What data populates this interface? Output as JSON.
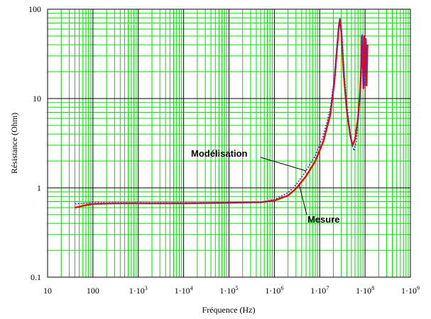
{
  "chart_data": {
    "type": "line",
    "title": "",
    "xlabel": "Fréquence (Hz)",
    "ylabel": "Résistance (Ohm)",
    "x_scale": "log",
    "y_scale": "log",
    "xlim": [
      10,
      1000000000
    ],
    "ylim": [
      0.1,
      100
    ],
    "grid": true,
    "grid_color": "#00dd00",
    "major_grid_color": "#000000",
    "x_ticks": [
      {
        "value": 10,
        "mant": "10",
        "exp": ""
      },
      {
        "value": 100,
        "mant": "100",
        "exp": ""
      },
      {
        "value": 1000,
        "mant": "1·10",
        "exp": "3"
      },
      {
        "value": 10000,
        "mant": "1·10",
        "exp": "4"
      },
      {
        "value": 100000,
        "mant": "1·10",
        "exp": "5"
      },
      {
        "value": 1000000,
        "mant": "1·10",
        "exp": "6"
      },
      {
        "value": 10000000,
        "mant": "1·10",
        "exp": "7"
      },
      {
        "value": 100000000,
        "mant": "1·10",
        "exp": "8"
      },
      {
        "value": 1000000000,
        "mant": "1·10",
        "exp": "9"
      }
    ],
    "y_ticks": [
      {
        "value": 0.1,
        "label": "0.1"
      },
      {
        "value": 1,
        "label": "1"
      },
      {
        "value": 10,
        "label": "10"
      },
      {
        "value": 100,
        "label": "100"
      }
    ],
    "series": [
      {
        "key": "mesure",
        "color": "#ff0000",
        "style": "solid",
        "points": [
          [
            40,
            0.6
          ],
          [
            60,
            0.63
          ],
          [
            100,
            0.66
          ],
          [
            300,
            0.67
          ],
          [
            1000,
            0.67
          ],
          [
            10000,
            0.67
          ],
          [
            100000,
            0.68
          ],
          [
            500000,
            0.69
          ],
          [
            1000000,
            0.72
          ],
          [
            2000000,
            0.82
          ],
          [
            3000000,
            0.98
          ],
          [
            5000000,
            1.35
          ],
          [
            8000000,
            2.0
          ],
          [
            12000000,
            3.3
          ],
          [
            17000000,
            6.5
          ],
          [
            21000000,
            15
          ],
          [
            24000000,
            35
          ],
          [
            26500000,
            65
          ],
          [
            28000000,
            77
          ],
          [
            30000000,
            55
          ],
          [
            34000000,
            18
          ],
          [
            40000000,
            7
          ],
          [
            47000000,
            3.9
          ],
          [
            53000000,
            3.0
          ],
          [
            60000000,
            3.5
          ],
          [
            70000000,
            6
          ],
          [
            78000000,
            12
          ],
          [
            83000000,
            28
          ],
          [
            86000000,
            50
          ],
          [
            88000000,
            30
          ],
          [
            92000000,
            13
          ],
          [
            96000000,
            50
          ],
          [
            100000000,
            22
          ],
          [
            104000000,
            45
          ],
          [
            108000000,
            14
          ],
          [
            113000000,
            40
          ]
        ]
      },
      {
        "key": "modelisation",
        "color": "#3030ff",
        "style": "dotted",
        "points": [
          [
            40,
            0.66
          ],
          [
            60,
            0.67
          ],
          [
            100,
            0.68
          ],
          [
            1000,
            0.68
          ],
          [
            10000,
            0.68
          ],
          [
            100000,
            0.68
          ],
          [
            500000,
            0.69
          ],
          [
            1000000,
            0.74
          ],
          [
            2000000,
            0.88
          ],
          [
            3000000,
            1.08
          ],
          [
            5000000,
            1.55
          ],
          [
            8000000,
            2.3
          ],
          [
            12000000,
            3.8
          ],
          [
            17000000,
            7.5
          ],
          [
            21000000,
            17
          ],
          [
            24000000,
            38
          ],
          [
            26500000,
            70
          ],
          [
            28000000,
            80
          ],
          [
            30500000,
            58
          ],
          [
            35000000,
            18
          ],
          [
            42000000,
            6.5
          ],
          [
            50000000,
            3.2
          ],
          [
            57000000,
            2.6
          ],
          [
            64000000,
            3.3
          ],
          [
            72000000,
            6.5
          ],
          [
            80000000,
            15
          ],
          [
            85000000,
            40
          ],
          [
            87000000,
            52
          ],
          [
            90000000,
            25
          ],
          [
            95000000,
            14
          ],
          [
            100000000,
            30
          ],
          [
            105000000,
            48
          ],
          [
            110000000,
            20
          ]
        ]
      }
    ],
    "annotations": [
      {
        "key": "modelisation_label",
        "text": "Modélisation",
        "anchor_x": 5000000,
        "anchor_y": 1.55
      },
      {
        "key": "mesure_label",
        "text": "Mesure",
        "anchor_x": 3500000,
        "anchor_y": 1.1
      }
    ]
  }
}
